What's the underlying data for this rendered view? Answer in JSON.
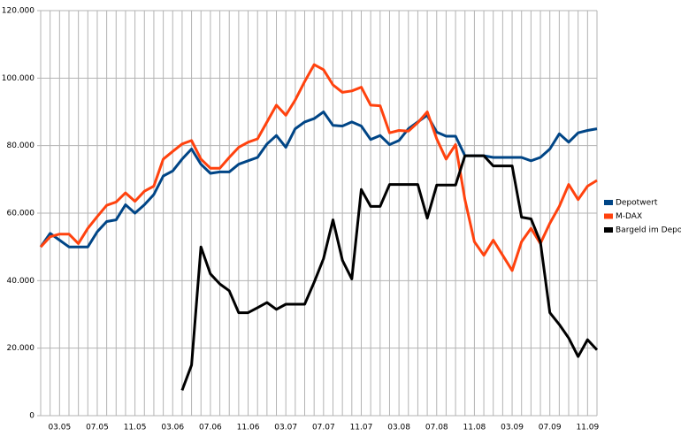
{
  "chart_data": {
    "type": "line",
    "categories": [
      null,
      null,
      "03.05",
      null,
      null,
      null,
      "07.05",
      null,
      null,
      null,
      "11.05",
      null,
      null,
      null,
      "03.06",
      null,
      null,
      null,
      "07.06",
      null,
      null,
      null,
      "11.06",
      null,
      null,
      null,
      "03.07",
      null,
      null,
      null,
      "07.07",
      null,
      null,
      null,
      "11.07",
      null,
      null,
      null,
      "03.08",
      null,
      null,
      null,
      "07.08",
      null,
      null,
      null,
      "11.08",
      null,
      null,
      null,
      "03.09",
      null,
      null,
      null,
      "07.09",
      null,
      null,
      null,
      "11.09",
      null
    ],
    "series": [
      {
        "name": "Depotwert",
        "color": "#004586",
        "values": [
          50000,
          54000,
          52000,
          50000,
          50000,
          50000,
          54500,
          57500,
          58000,
          62500,
          60000,
          62500,
          65500,
          71000,
          72500,
          76000,
          79000,
          74500,
          71800,
          72200,
          72200,
          74500,
          75500,
          76500,
          80500,
          83000,
          79500,
          85000,
          87000,
          88000,
          90000,
          86000,
          85800,
          87000,
          85800,
          81800,
          83000,
          80300,
          81500,
          85000,
          87000,
          89000,
          84000,
          82800,
          82800,
          77000,
          77000,
          77000,
          76500,
          76500,
          76500,
          76500,
          75500,
          76500,
          79000,
          83500,
          81000,
          83800,
          84500,
          85000
        ]
      },
      {
        "name": "M-DAX",
        "color": "#ff420e",
        "values": [
          50000,
          53000,
          53800,
          53800,
          51000,
          55500,
          59000,
          62300,
          63300,
          66000,
          63500,
          66500,
          68000,
          76000,
          78300,
          80500,
          81500,
          76000,
          73300,
          73300,
          76500,
          79500,
          81000,
          82000,
          87000,
          92000,
          89000,
          93500,
          99000,
          104000,
          102500,
          98000,
          95800,
          96200,
          97300,
          92000,
          91800,
          83800,
          84500,
          84300,
          86800,
          90000,
          82000,
          76000,
          80300,
          64000,
          51500,
          47500,
          52000,
          47500,
          43000,
          51500,
          55500,
          51000,
          57000,
          62000,
          68500,
          64000,
          68000,
          69700
        ]
      },
      {
        "name": "Bargeld im Depot",
        "color": "#000000",
        "values": [
          null,
          null,
          null,
          null,
          null,
          null,
          null,
          null,
          null,
          null,
          null,
          null,
          null,
          null,
          null,
          7500,
          15000,
          50000,
          42000,
          39000,
          37000,
          30500,
          30500,
          32000,
          33500,
          31500,
          33000,
          33000,
          33000,
          39500,
          46500,
          58000,
          46000,
          40500,
          67000,
          62000,
          62000,
          68500,
          68500,
          68500,
          68500,
          58500,
          68300,
          68300,
          68300,
          77000,
          77000,
          77000,
          74000,
          74000,
          74000,
          58800,
          58300,
          51500,
          30500,
          27000,
          23000,
          17500,
          22500,
          19500
        ]
      }
    ],
    "ylim": [
      0,
      120000
    ],
    "yticks": [
      0,
      {
        "value": 20000,
        "label": "20.000"
      },
      {
        "value": 40000,
        "label": "40.000"
      },
      {
        "value": 60000,
        "label": "60.000"
      },
      {
        "value": 80000,
        "label": "80.000"
      },
      {
        "value": 100000,
        "label": "100.000"
      },
      {
        "value": 120000,
        "label": "120.000"
      }
    ],
    "grid": true,
    "legend": "right"
  }
}
